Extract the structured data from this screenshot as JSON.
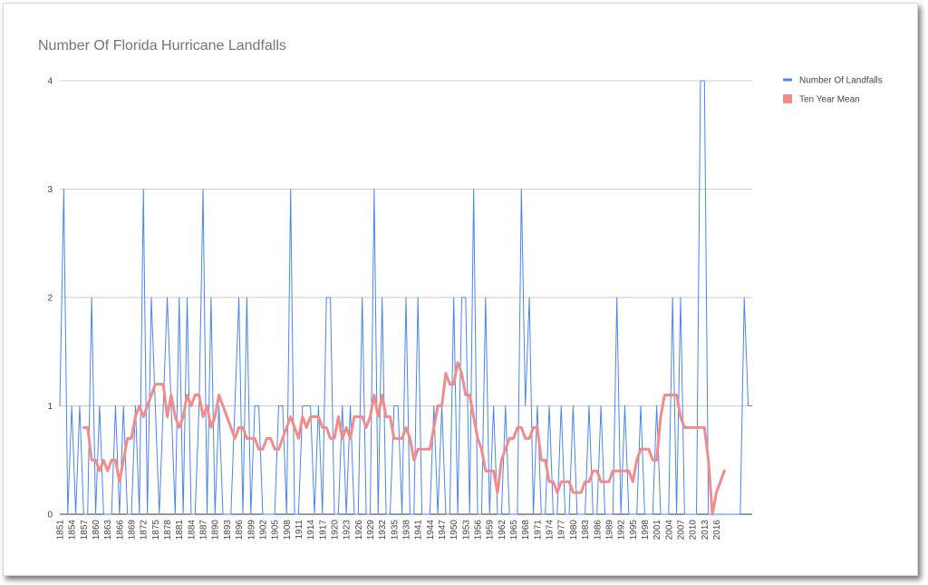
{
  "chart_data": {
    "type": "line",
    "title": "Number Of Florida Hurricane Landfalls",
    "xlabel": "",
    "ylabel": "",
    "ylim": [
      0,
      4
    ],
    "y_ticks": [
      "0",
      "1",
      "2",
      "3",
      "4"
    ],
    "x_tick_labels": [
      "1851",
      "1854",
      "1857",
      "1860",
      "1863",
      "1866",
      "1869",
      "1872",
      "1875",
      "1878",
      "1881",
      "1884",
      "1887",
      "1890",
      "1893",
      "1896",
      "1899",
      "1902",
      "1905",
      "1908",
      "1911",
      "1914",
      "1917",
      "1920",
      "1923",
      "1926",
      "1929",
      "1932",
      "1935",
      "1938",
      "1941",
      "1944",
      "1947",
      "1950",
      "1953",
      "1956",
      "1959",
      "1962",
      "1965",
      "1968",
      "1971",
      "1974",
      "1977",
      "1980",
      "1983",
      "1986",
      "1989",
      "1992",
      "1995",
      "1998",
      "2001",
      "2004",
      "2007",
      "2010",
      "2013",
      "2016"
    ],
    "grid": true,
    "legend_position": "right",
    "x_start": 1851,
    "series": [
      {
        "name": "Number Of Landfalls",
        "color": "#4a86e8",
        "values": [
          1,
          3,
          0,
          1,
          0,
          1,
          0,
          0,
          2,
          0,
          1,
          0,
          0,
          0,
          1,
          0,
          1,
          0,
          0,
          1,
          0,
          3,
          0,
          2,
          1,
          0,
          1,
          2,
          1,
          0,
          2,
          0,
          2,
          0,
          0,
          1,
          3,
          0,
          2,
          0,
          1,
          0,
          0,
          0,
          1,
          2,
          0,
          2,
          0,
          1,
          1,
          0,
          0,
          0,
          0,
          1,
          1,
          0,
          3,
          0,
          0,
          1,
          1,
          1,
          0,
          1,
          0,
          2,
          2,
          0,
          0,
          1,
          0,
          1,
          0,
          0,
          2,
          0,
          0,
          3,
          0,
          2,
          0,
          0,
          1,
          1,
          0,
          2,
          0,
          0,
          2,
          0,
          0,
          0,
          1,
          0,
          1,
          0,
          0,
          2,
          0,
          2,
          2,
          0,
          3,
          0,
          0,
          2,
          0,
          1,
          0,
          0,
          1,
          0,
          0,
          0,
          3,
          1,
          2,
          0,
          1,
          0,
          0,
          1,
          0,
          0,
          1,
          0,
          0,
          1,
          0,
          0,
          0,
          1,
          0,
          0,
          1,
          0,
          0,
          0,
          2,
          0,
          1,
          0,
          0,
          0,
          1,
          0,
          0,
          0,
          1,
          0,
          0,
          0,
          2,
          0,
          2,
          0,
          0,
          0,
          0,
          4,
          4,
          0,
          0,
          0,
          0,
          0,
          0,
          0,
          0,
          0,
          2,
          1,
          1
        ],
        "note": ""
      },
      {
        "name": "Ten Year Mean",
        "color": "#f28b8b",
        "x_start": 1857,
        "values": [
          0.8,
          0.8,
          0.5,
          0.5,
          0.4,
          0.5,
          0.4,
          0.5,
          0.5,
          0.3,
          0.5,
          0.7,
          0.7,
          0.9,
          1.0,
          0.9,
          1.0,
          1.1,
          1.2,
          1.2,
          1.2,
          0.9,
          1.1,
          0.9,
          0.8,
          0.9,
          1.1,
          1.0,
          1.1,
          1.1,
          0.9,
          1.0,
          0.8,
          0.9,
          1.1,
          1.0,
          0.9,
          0.8,
          0.7,
          0.8,
          0.8,
          0.7,
          0.7,
          0.7,
          0.6,
          0.6,
          0.7,
          0.7,
          0.6,
          0.6,
          0.7,
          0.8,
          0.9,
          0.8,
          0.7,
          0.9,
          0.8,
          0.9,
          0.9,
          0.9,
          0.8,
          0.8,
          0.7,
          0.7,
          0.9,
          0.7,
          0.8,
          0.7,
          0.9,
          0.9,
          0.9,
          0.8,
          0.9,
          1.1,
          0.9,
          1.1,
          0.9,
          0.9,
          0.7,
          0.7,
          0.7,
          0.8,
          0.7,
          0.5,
          0.6,
          0.6,
          0.6,
          0.6,
          0.8,
          1.0,
          1.0,
          1.3,
          1.2,
          1.2,
          1.4,
          1.3,
          1.1,
          1.1,
          0.9,
          0.7,
          0.6,
          0.4,
          0.4,
          0.4,
          0.2,
          0.5,
          0.6,
          0.7,
          0.7,
          0.8,
          0.8,
          0.7,
          0.7,
          0.8,
          0.8,
          0.5,
          0.5,
          0.3,
          0.3,
          0.2,
          0.3,
          0.3,
          0.3,
          0.2,
          0.2,
          0.2,
          0.3,
          0.3,
          0.4,
          0.4,
          0.3,
          0.3,
          0.3,
          0.4,
          0.4,
          0.4,
          0.4,
          0.4,
          0.3,
          0.5,
          0.6,
          0.6,
          0.6,
          0.5,
          0.5,
          0.9,
          1.1,
          1.1,
          1.1,
          1.1,
          0.9,
          0.8,
          0.8,
          0.8,
          0.8,
          0.8,
          0.8,
          0.5,
          0.0,
          0.2,
          0.3,
          0.4
        ]
      }
    ]
  }
}
